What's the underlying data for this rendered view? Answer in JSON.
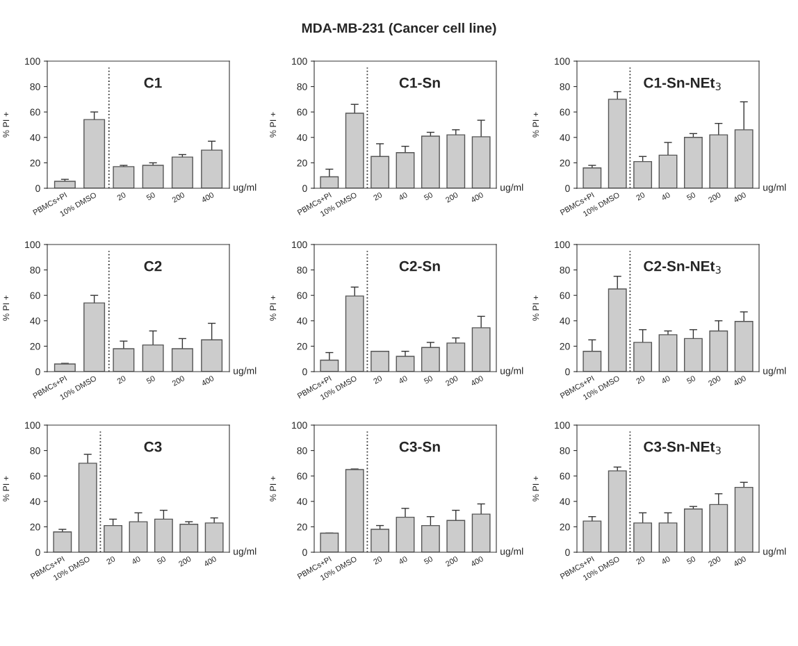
{
  "chart_data": [
    {
      "type": "bar",
      "title": "C1",
      "ylabel": "% PI +",
      "xlabel": "ug/ml",
      "annotations": [
        "MDA-MB-231 (Cancer cell line)"
      ],
      "categories": [
        "PBMCs+PI",
        "10% DMSO",
        "20",
        "50",
        "200",
        "400"
      ],
      "values": [
        5.5,
        54,
        17,
        18,
        24.5,
        30
      ],
      "errors": [
        1.5,
        6,
        1,
        2,
        2,
        7
      ],
      "color": "#cccccc",
      "ylim": [
        0,
        100
      ],
      "yticks": [
        0,
        20,
        40,
        60,
        80,
        100
      ],
      "grid": false
    },
    {
      "type": "bar",
      "title": "C1-Sn",
      "ylabel": "% PI +",
      "xlabel": "ug/ml",
      "categories": [
        "PBMCs+PI",
        "10% DMSO",
        "20",
        "40",
        "50",
        "200",
        "400"
      ],
      "values": [
        9,
        59,
        25,
        28,
        41,
        42,
        40.5
      ],
      "errors": [
        6,
        7,
        10,
        5,
        3,
        4,
        13
      ],
      "color": "#cccccc",
      "ylim": [
        0,
        100
      ],
      "yticks": [
        0,
        20,
        40,
        60,
        80,
        100
      ],
      "grid": false
    },
    {
      "type": "bar",
      "title": "C1-Sn-NEt$_{3}$",
      "ylabel": "% PI +",
      "xlabel": "ug/ml",
      "categories": [
        "PBMCs+PI",
        "10% DMSO",
        "20",
        "40",
        "50",
        "200",
        "400"
      ],
      "values": [
        16,
        70,
        21,
        26,
        40,
        42,
        46
      ],
      "errors": [
        2,
        6,
        4,
        10,
        3,
        9,
        22
      ],
      "color": "#cccccc",
      "ylim": [
        0,
        100
      ],
      "yticks": [
        0,
        20,
        40,
        60,
        80,
        100
      ],
      "grid": false
    },
    {
      "type": "bar",
      "title": "C2",
      "ylabel": "% PI +",
      "xlabel": "ug/ml",
      "categories": [
        "PBMCs+PI",
        "10% DMSO",
        "20",
        "50",
        "200",
        "400"
      ],
      "values": [
        6,
        54,
        18,
        21,
        18,
        25
      ],
      "errors": [
        0.5,
        6,
        6,
        11,
        8,
        13
      ],
      "color": "#cccccc",
      "ylim": [
        0,
        100
      ],
      "yticks": [
        0,
        20,
        40,
        60,
        80,
        100
      ],
      "grid": false
    },
    {
      "type": "bar",
      "title": "C2-Sn",
      "ylabel": "% PI +",
      "xlabel": "ug/ml",
      "categories": [
        "PBMCs+PI",
        "10% DMSO",
        "20",
        "40",
        "50",
        "200",
        "400"
      ],
      "values": [
        9,
        59.5,
        16,
        12,
        19,
        22.5,
        34.5
      ],
      "errors": [
        6,
        7,
        null,
        4,
        4,
        4,
        9
      ],
      "color": "#cccccc",
      "ylim": [
        0,
        100
      ],
      "yticks": [
        0,
        20,
        40,
        60,
        80,
        100
      ],
      "grid": false
    },
    {
      "type": "bar",
      "title": "C2-Sn-NEt$_{3}$",
      "ylabel": "% PI +",
      "xlabel": "ug/ml",
      "categories": [
        "PBMCs+PI",
        "10% DMSO",
        "20",
        "40",
        "50",
        "200",
        "400"
      ],
      "values": [
        16,
        65,
        23,
        29,
        26,
        32,
        39.5
      ],
      "errors": [
        9,
        10,
        10,
        3,
        7,
        8,
        7.5
      ],
      "color": "#cccccc",
      "ylim": [
        0,
        100
      ],
      "yticks": [
        0,
        20,
        40,
        60,
        80,
        100
      ],
      "grid": false
    },
    {
      "type": "bar",
      "title": "C3",
      "ylabel": "% PI +",
      "xlabel": "ug/ml",
      "categories": [
        "PBMCs+PI",
        "10% DMSO",
        "20",
        "40",
        "50",
        "200",
        "400"
      ],
      "values": [
        16,
        70,
        21,
        24,
        26,
        22,
        23
      ],
      "errors": [
        2,
        7,
        5,
        7,
        7,
        2,
        4
      ],
      "color": "#cccccc",
      "ylim": [
        0,
        100
      ],
      "yticks": [
        0,
        20,
        40,
        60,
        80,
        100
      ],
      "grid": false
    },
    {
      "type": "bar",
      "title": "C3-Sn",
      "ylabel": "% PI +",
      "xlabel": "ug/ml",
      "categories": [
        "PBMCs+PI",
        "10% DMSO",
        "20",
        "40",
        "50",
        "200",
        "400"
      ],
      "values": [
        15,
        65,
        18,
        27.5,
        21,
        25,
        30
      ],
      "errors": [
        null,
        0.5,
        3,
        7,
        7,
        8,
        8
      ],
      "color": "#cccccc",
      "ylim": [
        0,
        100
      ],
      "yticks": [
        0,
        20,
        40,
        60,
        80,
        100
      ],
      "grid": false
    },
    {
      "type": "bar",
      "title": "C3-Sn-NEt$_{3}$",
      "ylabel": "% PI +",
      "xlabel": "ug/ml",
      "categories": [
        "PBMCs+PI",
        "10% DMSO",
        "20",
        "40",
        "50",
        "200",
        "400"
      ],
      "values": [
        24.5,
        64,
        23,
        23,
        34,
        37.5,
        51
      ],
      "errors": [
        3.5,
        3,
        8,
        8,
        2,
        8.5,
        4
      ],
      "color": "#cccccc",
      "ylim": [
        0,
        100
      ],
      "yticks": [
        0,
        20,
        40,
        60,
        80,
        100
      ],
      "grid": false
    }
  ]
}
